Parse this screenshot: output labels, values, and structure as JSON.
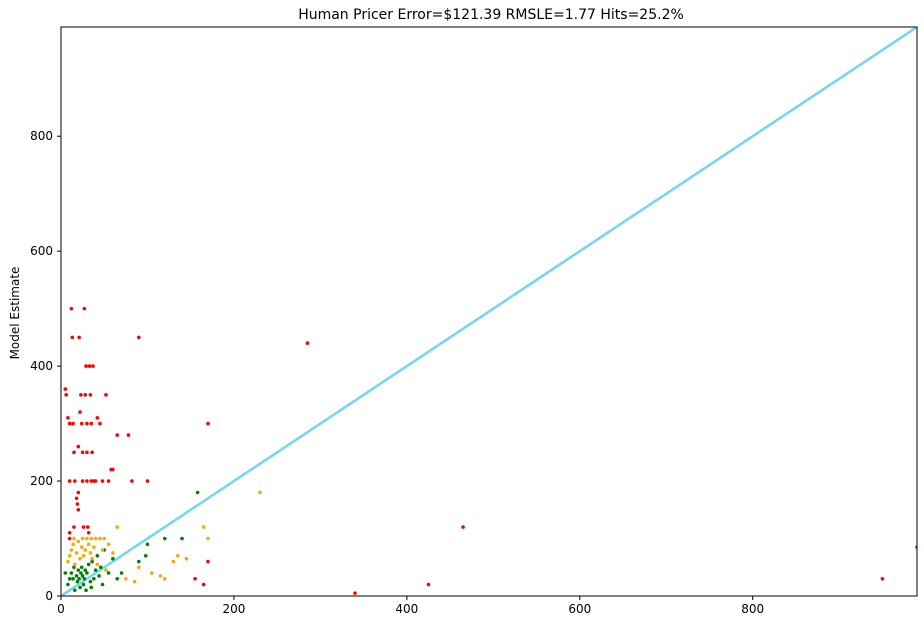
{
  "chart_data": {
    "type": "scatter",
    "title": "Human Pricer Error=$121.39 RMSLE=1.77 Hits=25.2%",
    "xlabel": "",
    "ylabel": "Model Estimate",
    "xlim": [
      0,
      990
    ],
    "ylim": [
      0,
      990
    ],
    "xticks": [
      "0",
      "200",
      "400",
      "600",
      "800"
    ],
    "yticks": [
      "0",
      "200",
      "400",
      "600",
      "800"
    ],
    "grid": false,
    "reference_line": {
      "x": [
        0,
        990
      ],
      "y": [
        0,
        990
      ],
      "color": "#6fd7f1"
    },
    "series": [
      {
        "color": "#008000",
        "points": [
          [
            5,
            40
          ],
          [
            8,
            20
          ],
          [
            10,
            30
          ],
          [
            12,
            40
          ],
          [
            14,
            30
          ],
          [
            15,
            50
          ],
          [
            16,
            10
          ],
          [
            18,
            35
          ],
          [
            19,
            25
          ],
          [
            20,
            45
          ],
          [
            21,
            30
          ],
          [
            22,
            15
          ],
          [
            23,
            40
          ],
          [
            24,
            50
          ],
          [
            25,
            35
          ],
          [
            26,
            20
          ],
          [
            27,
            30
          ],
          [
            28,
            45
          ],
          [
            29,
            10
          ],
          [
            30,
            40
          ],
          [
            32,
            55
          ],
          [
            34,
            25
          ],
          [
            35,
            15
          ],
          [
            36,
            60
          ],
          [
            38,
            30
          ],
          [
            40,
            45
          ],
          [
            42,
            70
          ],
          [
            44,
            35
          ],
          [
            46,
            50
          ],
          [
            48,
            20
          ],
          [
            50,
            80
          ],
          [
            55,
            40
          ],
          [
            60,
            65
          ],
          [
            65,
            30
          ],
          [
            70,
            40
          ],
          [
            90,
            60
          ],
          [
            98,
            70
          ],
          [
            100,
            90
          ],
          [
            120,
            100
          ],
          [
            140,
            100
          ],
          [
            158,
            180
          ]
        ]
      },
      {
        "color": "#ffa500",
        "points": [
          [
            8,
            60
          ],
          [
            10,
            70
          ],
          [
            12,
            80
          ],
          [
            14,
            90
          ],
          [
            15,
            100
          ],
          [
            16,
            55
          ],
          [
            18,
            75
          ],
          [
            20,
            95
          ],
          [
            22,
            65
          ],
          [
            24,
            85
          ],
          [
            25,
            100
          ],
          [
            26,
            70
          ],
          [
            28,
            80
          ],
          [
            30,
            100
          ],
          [
            32,
            90
          ],
          [
            34,
            75
          ],
          [
            35,
            100
          ],
          [
            36,
            65
          ],
          [
            38,
            85
          ],
          [
            40,
            100
          ],
          [
            42,
            55
          ],
          [
            45,
            100
          ],
          [
            48,
            80
          ],
          [
            50,
            100
          ],
          [
            52,
            45
          ],
          [
            55,
            90
          ],
          [
            60,
            75
          ],
          [
            65,
            120
          ],
          [
            75,
            30
          ],
          [
            85,
            25
          ],
          [
            90,
            50
          ],
          [
            105,
            40
          ],
          [
            115,
            35
          ],
          [
            120,
            30
          ],
          [
            130,
            60
          ],
          [
            135,
            70
          ],
          [
            145,
            65
          ],
          [
            165,
            120
          ],
          [
            170,
            100
          ],
          [
            230,
            180
          ]
        ]
      },
      {
        "color": "#ff0000",
        "points": [
          [
            5,
            360
          ],
          [
            6,
            350
          ],
          [
            8,
            310
          ],
          [
            10,
            300
          ],
          [
            10,
            200
          ],
          [
            10,
            100
          ],
          [
            10,
            110
          ],
          [
            12,
            500
          ],
          [
            13,
            450
          ],
          [
            14,
            300
          ],
          [
            15,
            250
          ],
          [
            15,
            120
          ],
          [
            16,
            200
          ],
          [
            18,
            170
          ],
          [
            19,
            160
          ],
          [
            20,
            260
          ],
          [
            20,
            180
          ],
          [
            20,
            150
          ],
          [
            21,
            450
          ],
          [
            22,
            320
          ],
          [
            23,
            350
          ],
          [
            24,
            300
          ],
          [
            25,
            250
          ],
          [
            25,
            200
          ],
          [
            26,
            120
          ],
          [
            27,
            500
          ],
          [
            28,
            350
          ],
          [
            29,
            400
          ],
          [
            30,
            300
          ],
          [
            30,
            200
          ],
          [
            30,
            250
          ],
          [
            31,
            120
          ],
          [
            32,
            110
          ],
          [
            33,
            400
          ],
          [
            34,
            350
          ],
          [
            35,
            300
          ],
          [
            35,
            200
          ],
          [
            36,
            250
          ],
          [
            37,
            400
          ],
          [
            38,
            200
          ],
          [
            40,
            200
          ],
          [
            42,
            310
          ],
          [
            45,
            300
          ],
          [
            48,
            200
          ],
          [
            52,
            350
          ],
          [
            55,
            200
          ],
          [
            58,
            220
          ],
          [
            60,
            220
          ],
          [
            65,
            280
          ],
          [
            78,
            280
          ],
          [
            82,
            200
          ],
          [
            90,
            450
          ],
          [
            100,
            200
          ],
          [
            155,
            30
          ],
          [
            165,
            20
          ],
          [
            170,
            60
          ],
          [
            170,
            300
          ],
          [
            285,
            440
          ],
          [
            340,
            5
          ],
          [
            425,
            20
          ],
          [
            465,
            120
          ],
          [
            950,
            30
          ],
          [
            990,
            85
          ]
        ]
      }
    ]
  }
}
